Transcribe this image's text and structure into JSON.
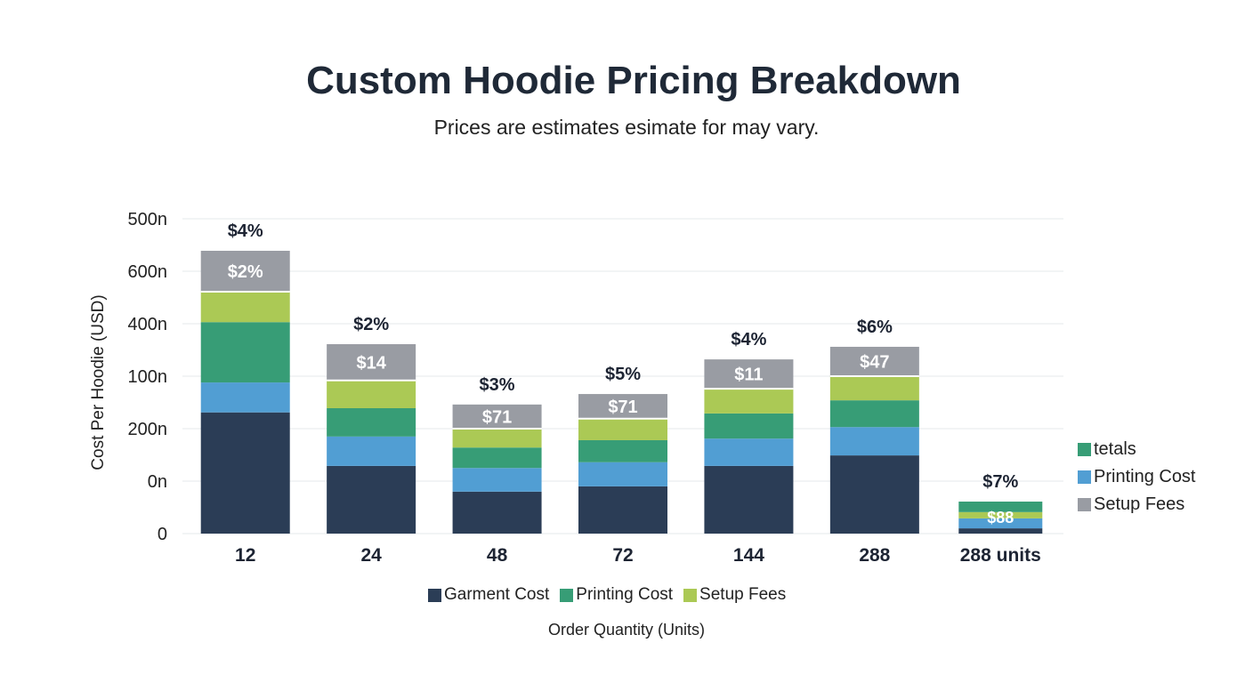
{
  "chart_data": {
    "type": "bar",
    "stacked": true,
    "title": "Custom Hoodie Pricing Breakdown",
    "subtitle": "Prices are estimates esimate for may vary.",
    "xlabel": "Order Quantity (Units)",
    "ylabel": "Cost Per Hoodie (USD)",
    "y_tick_labels": [
      "0",
      "0n",
      "200n",
      "100n",
      "400n",
      "600n",
      "500n"
    ],
    "ylim": [
      0,
      6
    ],
    "grid": true,
    "categories": [
      "12",
      "24",
      "48",
      "72",
      "144",
      "288",
      "288 units"
    ],
    "colors": {
      "garment": "#2b3d56",
      "printing": "#519ed3",
      "green": "#379d76",
      "setup": "#abc955",
      "gray": "#999ca3"
    },
    "bars": [
      {
        "stack": [
          [
            "garment",
            2.31
          ],
          [
            "printing",
            0.57
          ],
          [
            "green",
            1.15
          ],
          [
            "setup",
            0.58
          ],
          [
            "gray",
            0.78
          ]
        ],
        "top_label": "$4%",
        "inner_label": "$2%"
      },
      {
        "stack": [
          [
            "garment",
            1.29
          ],
          [
            "printing",
            0.56
          ],
          [
            "green",
            0.54
          ],
          [
            "setup",
            0.53
          ],
          [
            "gray",
            0.69
          ]
        ],
        "top_label": "$2%",
        "inner_label": "$14"
      },
      {
        "stack": [
          [
            "garment",
            0.8
          ],
          [
            "printing",
            0.45
          ],
          [
            "green",
            0.39
          ],
          [
            "setup",
            0.36
          ],
          [
            "gray",
            0.46
          ]
        ],
        "top_label": "$3%",
        "inner_label": "$71"
      },
      {
        "stack": [
          [
            "garment",
            0.9
          ],
          [
            "printing",
            0.46
          ],
          [
            "green",
            0.42
          ],
          [
            "setup",
            0.41
          ],
          [
            "gray",
            0.47
          ]
        ],
        "top_label": "$5%",
        "inner_label": "$71"
      },
      {
        "stack": [
          [
            "garment",
            1.29
          ],
          [
            "printing",
            0.52
          ],
          [
            "green",
            0.48
          ],
          [
            "setup",
            0.47
          ],
          [
            "gray",
            0.56
          ]
        ],
        "top_label": "$4%",
        "inner_label": "$11"
      },
      {
        "stack": [
          [
            "garment",
            1.49
          ],
          [
            "printing",
            0.54
          ],
          [
            "green",
            0.51
          ],
          [
            "setup",
            0.46
          ],
          [
            "gray",
            0.56
          ]
        ],
        "top_label": "$6%",
        "inner_label": "$47"
      },
      {
        "stack": [
          [
            "garment",
            0.1
          ],
          [
            "printing",
            0.19
          ],
          [
            "setup",
            0.12
          ],
          [
            "green",
            0.2
          ]
        ],
        "top_label": "$7%",
        "inner_label": "$88"
      }
    ],
    "legend_bottom": [
      {
        "label": "Garment Cost",
        "color": "#2b3d56"
      },
      {
        "label": "Printing Cost",
        "color": "#379d76"
      },
      {
        "label": "Setup Fees",
        "color": "#abc955"
      }
    ],
    "legend_right": [
      {
        "label": "tetals",
        "color": "#379d76"
      },
      {
        "label": "Printing Cost",
        "color": "#519ed3"
      },
      {
        "label": "Setup Fees",
        "color": "#999ca3"
      }
    ]
  }
}
